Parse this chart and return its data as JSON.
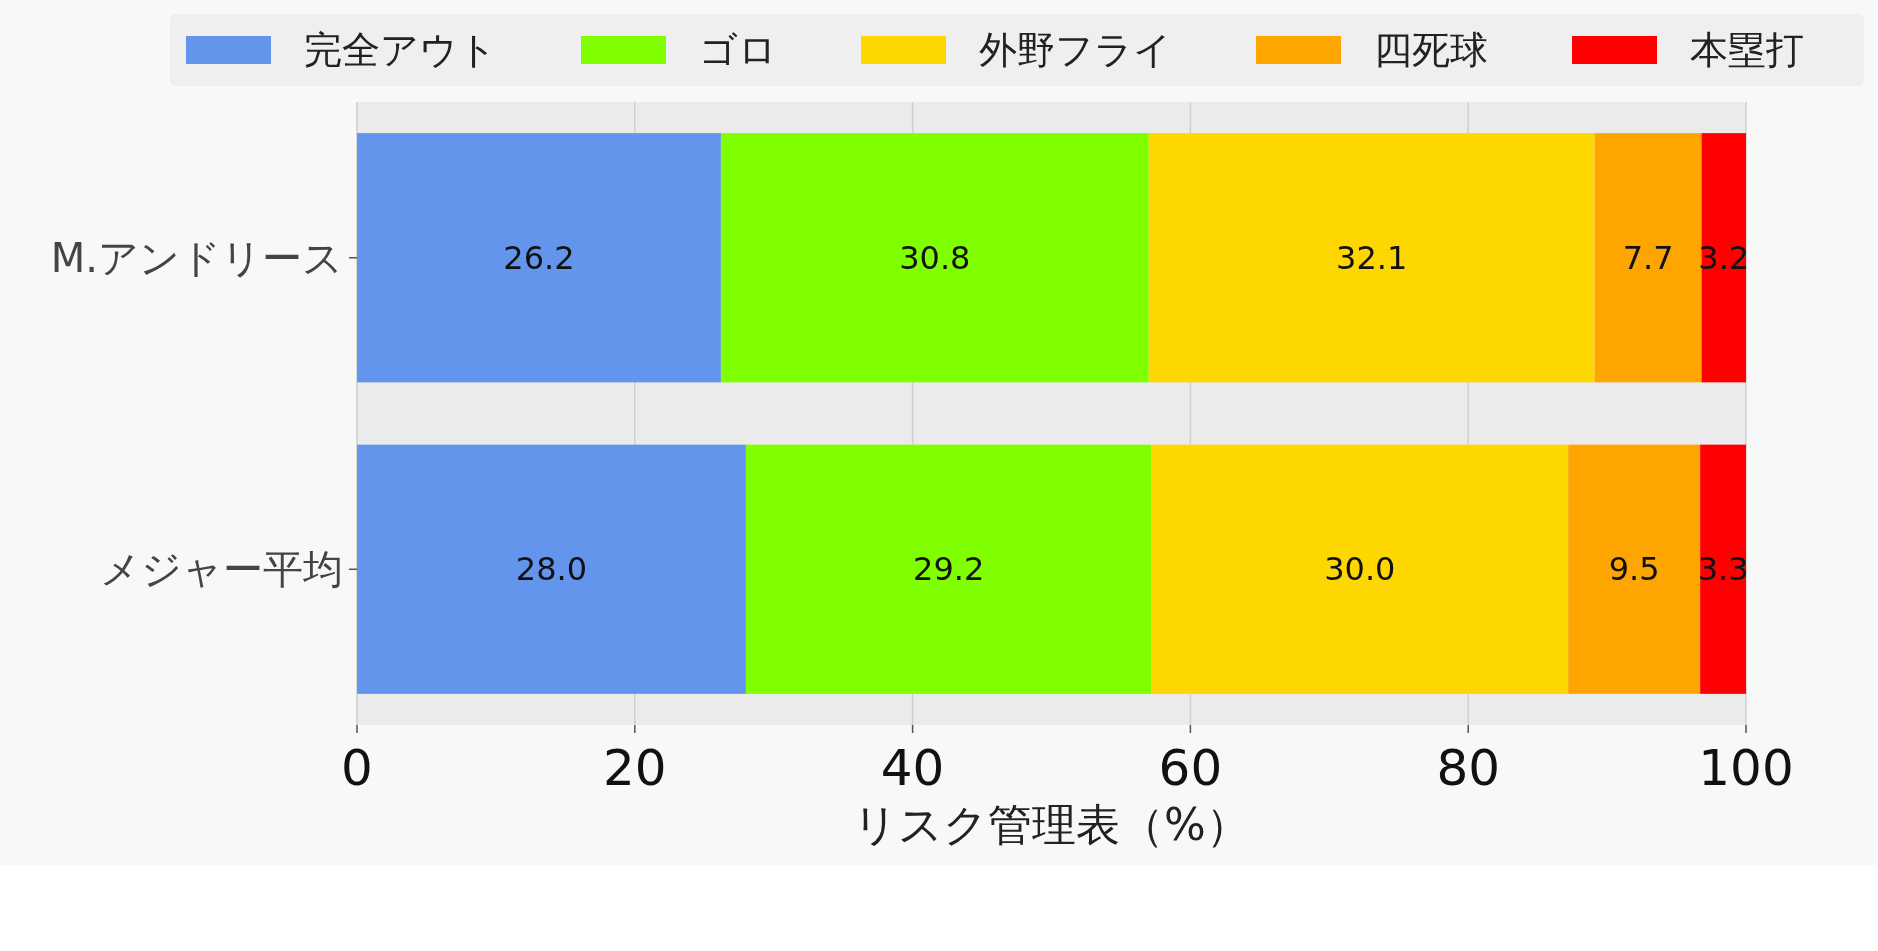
{
  "chart_data": {
    "type": "bar",
    "orientation": "horizontal",
    "stacked": true,
    "xlabel": "リスク管理表（%）",
    "categories": [
      "M.アンドリース",
      "メジャー平均"
    ],
    "series": [
      {
        "name": "完全アウト",
        "color": "#6495ed",
        "values": [
          26.2,
          28.0
        ],
        "value_labels": [
          "26.2",
          "28.0"
        ]
      },
      {
        "name": "ゴロ",
        "color": "#7fff00",
        "values": [
          30.8,
          29.2
        ],
        "value_labels": [
          "30.8",
          "29.2"
        ]
      },
      {
        "name": "外野フライ",
        "color": "#ffd700",
        "values": [
          32.1,
          30.0
        ],
        "value_labels": [
          "32.1",
          "30.0"
        ]
      },
      {
        "name": "四死球",
        "color": "#ffa500",
        "values": [
          7.7,
          9.5
        ],
        "value_labels": [
          "7.7",
          "9.5"
        ]
      },
      {
        "name": "本塁打",
        "color": "#ff0000",
        "values": [
          3.2,
          3.3
        ],
        "value_labels": [
          "3.2",
          "3.3"
        ]
      }
    ],
    "xlim": [
      0,
      100
    ],
    "xticks": [
      0,
      20,
      40,
      60,
      80,
      100
    ],
    "grid": "x",
    "legend": "top"
  }
}
